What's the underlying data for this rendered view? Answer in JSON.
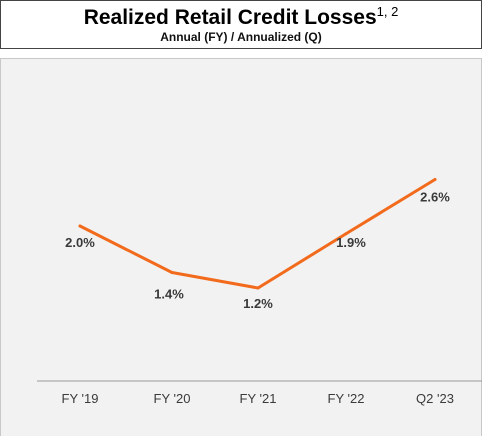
{
  "header": {
    "title": "Realized Retail Credit Losses",
    "title_sup": "1, 2",
    "subtitle": "Annual (FY) / Annualized (Q)"
  },
  "chart_data": {
    "type": "line",
    "title": "Realized Retail Credit Losses",
    "subtitle": "Annual (FY) / Annualized (Q)",
    "categories": [
      "FY '19",
      "FY '20",
      "FY '21",
      "FY '22",
      "Q2 '23"
    ],
    "series": [
      {
        "values": [
          2.0,
          1.4,
          1.2,
          1.9,
          2.6
        ],
        "labels": [
          "2.0%",
          "1.4%",
          "1.2%",
          "1.9%",
          "2.6%"
        ]
      }
    ],
    "xlabel": "",
    "ylabel": "",
    "grid": false,
    "line_color": "#f26b1d"
  }
}
